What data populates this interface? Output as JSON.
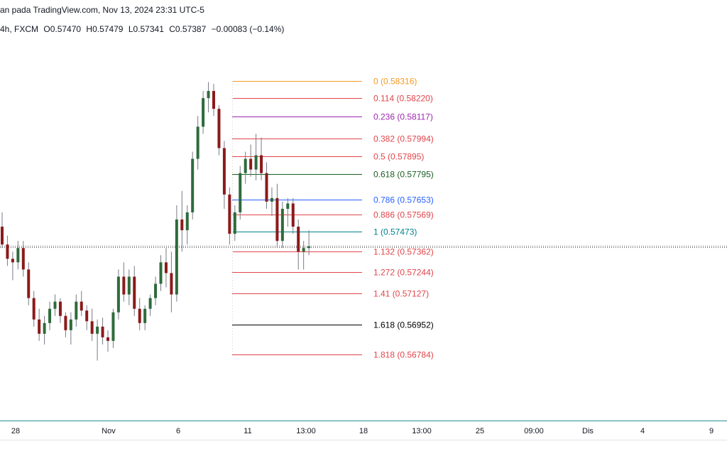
{
  "header": {
    "attribution": "an pada TradingView.com, Nov 13, 2024 23:31 UTC-5",
    "symbol_info": "4h, FXCM",
    "open": "O0.57470",
    "high": "H0.57479",
    "low": "L0.57341",
    "close": "C0.57387",
    "change": "−0.00083 (−0.14%)"
  },
  "colors": {
    "up": "#2e6b3c",
    "down": "#8b1a1a",
    "wick": "#787b86",
    "axis_line": "#2a8f9a",
    "price_line": "#555555"
  },
  "chart_data": {
    "type": "candlestick",
    "instrument": "FXCM",
    "timeframe": "4h",
    "current_price": 0.57387,
    "x_tick_labels": [
      "28",
      "Nov",
      "6",
      "11",
      "13:00",
      "18",
      "13:00",
      "25",
      "09:00",
      "Dis",
      "4",
      "9"
    ],
    "fibonacci": [
      {
        "level": "0",
        "price": 0.58316,
        "label": "0 (0.58316)",
        "color": "#f59a23"
      },
      {
        "level": "0.114",
        "price": 0.5822,
        "label": "0.114 (0.58220)",
        "color": "#e0454a"
      },
      {
        "level": "0.236",
        "price": 0.58117,
        "label": "0.236 (0.58117)",
        "color": "#9c27b0"
      },
      {
        "level": "0.382",
        "price": 0.57994,
        "label": "0.382 (0.57994)",
        "color": "#e0454a"
      },
      {
        "level": "0.5",
        "price": 0.57895,
        "label": "0.5 (0.57895)",
        "color": "#e0454a"
      },
      {
        "level": "0.618",
        "price": 0.57795,
        "label": "0.618 (0.57795)",
        "color": "#1b5e20"
      },
      {
        "level": "0.786",
        "price": 0.57653,
        "label": "0.786 (0.57653)",
        "color": "#2962ff"
      },
      {
        "level": "0.886",
        "price": 0.57569,
        "label": "0.886 (0.57569)",
        "color": "#e0454a"
      },
      {
        "level": "1",
        "price": 0.57473,
        "label": "1 (0.57473)",
        "color": "#00838f"
      },
      {
        "level": "1.132",
        "price": 0.57362,
        "label": "1.132 (0.57362)",
        "color": "#e0454a"
      },
      {
        "level": "1.272",
        "price": 0.57244,
        "label": "1.272 (0.57244)",
        "color": "#e0454a"
      },
      {
        "level": "1.41",
        "price": 0.57127,
        "label": "1.41 (0.57127)",
        "color": "#e0454a"
      },
      {
        "level": "1.618",
        "price": 0.56952,
        "label": "1.618 (0.56952)",
        "color": "#000000"
      },
      {
        "level": "1.818",
        "price": 0.56784,
        "label": "1.818 (0.56784)",
        "color": "#e0454a"
      }
    ],
    "candles": [
      {
        "o": 0.575,
        "h": 0.5758,
        "l": 0.5738,
        "c": 0.574
      },
      {
        "o": 0.574,
        "h": 0.5745,
        "l": 0.5728,
        "c": 0.5732
      },
      {
        "o": 0.5732,
        "h": 0.5736,
        "l": 0.572,
        "c": 0.573
      },
      {
        "o": 0.573,
        "h": 0.5742,
        "l": 0.5726,
        "c": 0.5738
      },
      {
        "o": 0.5738,
        "h": 0.5742,
        "l": 0.5722,
        "c": 0.5726
      },
      {
        "o": 0.5726,
        "h": 0.573,
        "l": 0.5706,
        "c": 0.571
      },
      {
        "o": 0.571,
        "h": 0.5714,
        "l": 0.5694,
        "c": 0.5698
      },
      {
        "o": 0.5698,
        "h": 0.5704,
        "l": 0.5686,
        "c": 0.569
      },
      {
        "o": 0.569,
        "h": 0.57,
        "l": 0.5684,
        "c": 0.5696
      },
      {
        "o": 0.5696,
        "h": 0.5708,
        "l": 0.5692,
        "c": 0.5704
      },
      {
        "o": 0.5704,
        "h": 0.5712,
        "l": 0.57,
        "c": 0.5708
      },
      {
        "o": 0.5708,
        "h": 0.571,
        "l": 0.5696,
        "c": 0.57
      },
      {
        "o": 0.57,
        "h": 0.5702,
        "l": 0.5688,
        "c": 0.5692
      },
      {
        "o": 0.5692,
        "h": 0.5702,
        "l": 0.5684,
        "c": 0.5698
      },
      {
        "o": 0.5698,
        "h": 0.5712,
        "l": 0.5694,
        "c": 0.5708
      },
      {
        "o": 0.5708,
        "h": 0.5714,
        "l": 0.57,
        "c": 0.5703
      },
      {
        "o": 0.5703,
        "h": 0.5706,
        "l": 0.5692,
        "c": 0.5697
      },
      {
        "o": 0.5697,
        "h": 0.5704,
        "l": 0.5686,
        "c": 0.569
      },
      {
        "o": 0.569,
        "h": 0.5698,
        "l": 0.5675,
        "c": 0.5694
      },
      {
        "o": 0.5694,
        "h": 0.5699,
        "l": 0.5684,
        "c": 0.5688
      },
      {
        "o": 0.5688,
        "h": 0.5692,
        "l": 0.568,
        "c": 0.5686
      },
      {
        "o": 0.5686,
        "h": 0.5704,
        "l": 0.5682,
        "c": 0.5702
      },
      {
        "o": 0.5702,
        "h": 0.5726,
        "l": 0.5698,
        "c": 0.5722
      },
      {
        "o": 0.5722,
        "h": 0.573,
        "l": 0.5708,
        "c": 0.5712
      },
      {
        "o": 0.5712,
        "h": 0.5726,
        "l": 0.5706,
        "c": 0.5722
      },
      {
        "o": 0.5722,
        "h": 0.5728,
        "l": 0.57,
        "c": 0.5704
      },
      {
        "o": 0.5704,
        "h": 0.571,
        "l": 0.5692,
        "c": 0.5696
      },
      {
        "o": 0.5696,
        "h": 0.5706,
        "l": 0.5692,
        "c": 0.5704
      },
      {
        "o": 0.5704,
        "h": 0.5712,
        "l": 0.57,
        "c": 0.571
      },
      {
        "o": 0.571,
        "h": 0.5722,
        "l": 0.5706,
        "c": 0.5718
      },
      {
        "o": 0.5718,
        "h": 0.5734,
        "l": 0.5714,
        "c": 0.573
      },
      {
        "o": 0.573,
        "h": 0.5738,
        "l": 0.5716,
        "c": 0.5724
      },
      {
        "o": 0.5724,
        "h": 0.5736,
        "l": 0.5702,
        "c": 0.5712
      },
      {
        "o": 0.5712,
        "h": 0.5762,
        "l": 0.5708,
        "c": 0.5754
      },
      {
        "o": 0.5754,
        "h": 0.577,
        "l": 0.5736,
        "c": 0.5748
      },
      {
        "o": 0.5748,
        "h": 0.5762,
        "l": 0.574,
        "c": 0.5758
      },
      {
        "o": 0.5758,
        "h": 0.5792,
        "l": 0.5754,
        "c": 0.5788
      },
      {
        "o": 0.5788,
        "h": 0.5812,
        "l": 0.5782,
        "c": 0.5806
      },
      {
        "o": 0.5806,
        "h": 0.5826,
        "l": 0.5802,
        "c": 0.5822
      },
      {
        "o": 0.5822,
        "h": 0.5831,
        "l": 0.5814,
        "c": 0.5826
      },
      {
        "o": 0.5826,
        "h": 0.583,
        "l": 0.5812,
        "c": 0.5816
      },
      {
        "o": 0.5816,
        "h": 0.5818,
        "l": 0.579,
        "c": 0.5794
      },
      {
        "o": 0.5794,
        "h": 0.5798,
        "l": 0.576,
        "c": 0.5768
      },
      {
        "o": 0.5768,
        "h": 0.5772,
        "l": 0.574,
        "c": 0.5746
      },
      {
        "o": 0.5746,
        "h": 0.5762,
        "l": 0.5742,
        "c": 0.5758
      },
      {
        "o": 0.5758,
        "h": 0.5784,
        "l": 0.5754,
        "c": 0.578
      },
      {
        "o": 0.578,
        "h": 0.5792,
        "l": 0.5774,
        "c": 0.5788
      },
      {
        "o": 0.5788,
        "h": 0.5796,
        "l": 0.5778,
        "c": 0.5782
      },
      {
        "o": 0.5782,
        "h": 0.5802,
        "l": 0.5776,
        "c": 0.579
      },
      {
        "o": 0.579,
        "h": 0.58,
        "l": 0.5776,
        "c": 0.578
      },
      {
        "o": 0.578,
        "h": 0.5786,
        "l": 0.576,
        "c": 0.5764
      },
      {
        "o": 0.5764,
        "h": 0.5772,
        "l": 0.5756,
        "c": 0.5766
      },
      {
        "o": 0.5766,
        "h": 0.5774,
        "l": 0.5738,
        "c": 0.5742
      },
      {
        "o": 0.5742,
        "h": 0.5764,
        "l": 0.5738,
        "c": 0.576
      },
      {
        "o": 0.576,
        "h": 0.5766,
        "l": 0.575,
        "c": 0.5763
      },
      {
        "o": 0.5763,
        "h": 0.5766,
        "l": 0.5746,
        "c": 0.575
      },
      {
        "o": 0.575,
        "h": 0.5754,
        "l": 0.5726,
        "c": 0.5736
      },
      {
        "o": 0.5736,
        "h": 0.5742,
        "l": 0.5726,
        "c": 0.5738
      },
      {
        "o": 0.5738,
        "h": 0.5748,
        "l": 0.5734,
        "c": 0.5739
      }
    ]
  }
}
